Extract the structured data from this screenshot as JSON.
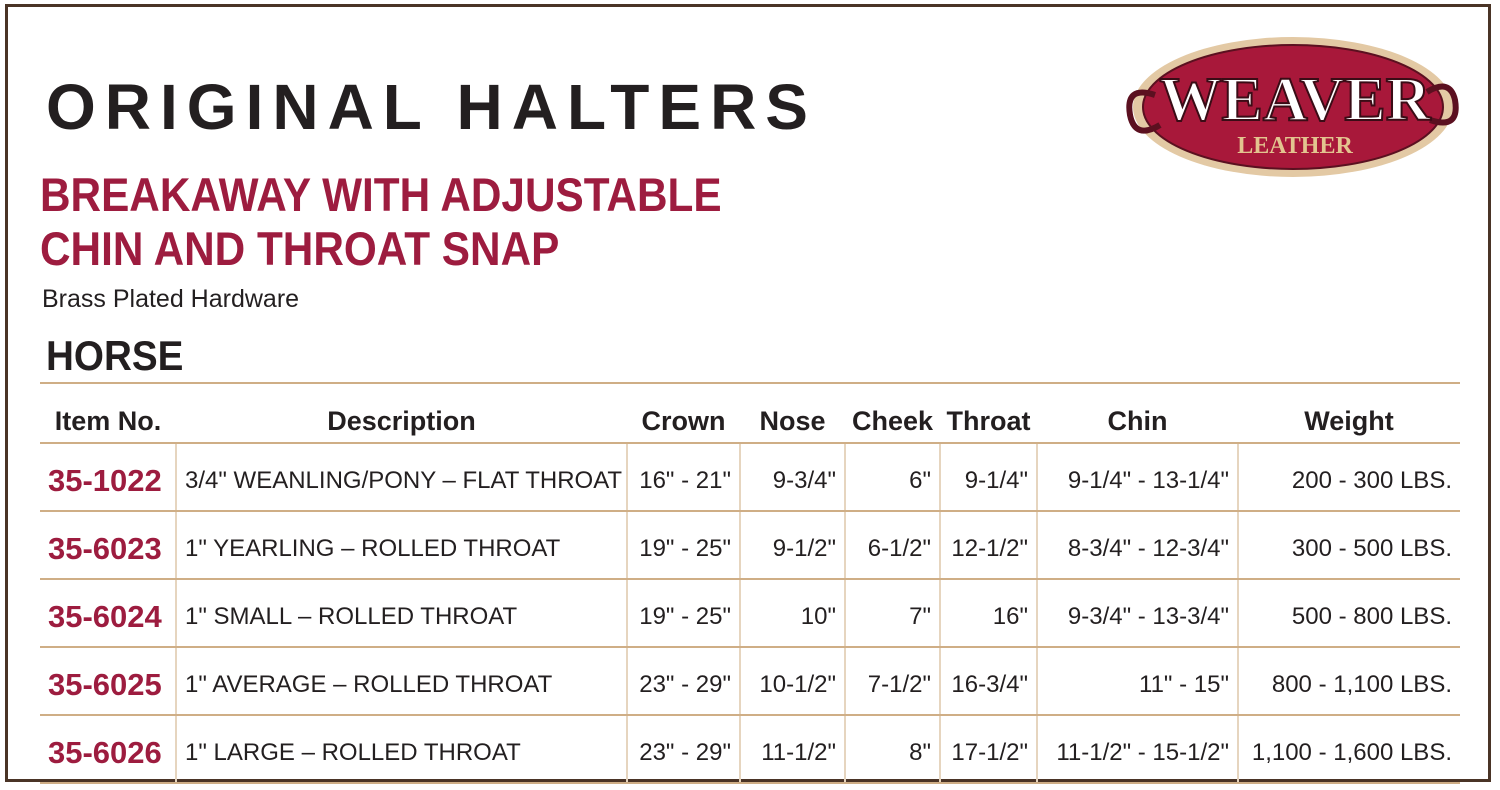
{
  "header": {
    "title": "ORIGINAL HALTERS",
    "subtitle": "BREAKAWAY WITH ADJUSTABLE CHIN AND THROAT SNAP",
    "note": "Brass Plated Hardware"
  },
  "logo": {
    "brand": "WEAVER",
    "sub": "LEATHER"
  },
  "section": "HORSE",
  "table": {
    "columns": [
      "Item No.",
      "Description",
      "Crown",
      "Nose",
      "Cheek",
      "Throat",
      "Chin",
      "Weight"
    ],
    "rows": [
      [
        "35-1022",
        "3/4\" WEANLING/PONY – FLAT THROAT",
        "16\" - 21\"",
        "9-3/4\"",
        "6\"",
        "9-1/4\"",
        "9-1/4\" - 13-1/4\"",
        "200 - 300 LBS."
      ],
      [
        "35-6023",
        "1\" YEARLING – ROLLED THROAT",
        "19\" - 25\"",
        "9-1/2\"",
        "6-1/2\"",
        "12-1/2\"",
        "8-3/4\" - 12-3/4\"",
        "300 - 500 LBS."
      ],
      [
        "35-6024",
        "1\" SMALL – ROLLED THROAT",
        "19\" - 25\"",
        "10\"",
        "7\"",
        "16\"",
        "9-3/4\" - 13-3/4\"",
        "500 - 800 LBS."
      ],
      [
        "35-6025",
        "1\" AVERAGE – ROLLED THROAT",
        "23\" - 29\"",
        "10-1/2\"",
        "7-1/2\"",
        "16-3/4\"",
        "11\" - 15\"",
        "800 - 1,100 LBS."
      ],
      [
        "35-6026",
        "1\" LARGE – ROLLED THROAT",
        "23\" - 29\"",
        "11-1/2\"",
        "8\"",
        "17-1/2\"",
        "11-1/2\" - 15-1/2\"",
        "1,100 - 1,600 LBS."
      ]
    ]
  }
}
